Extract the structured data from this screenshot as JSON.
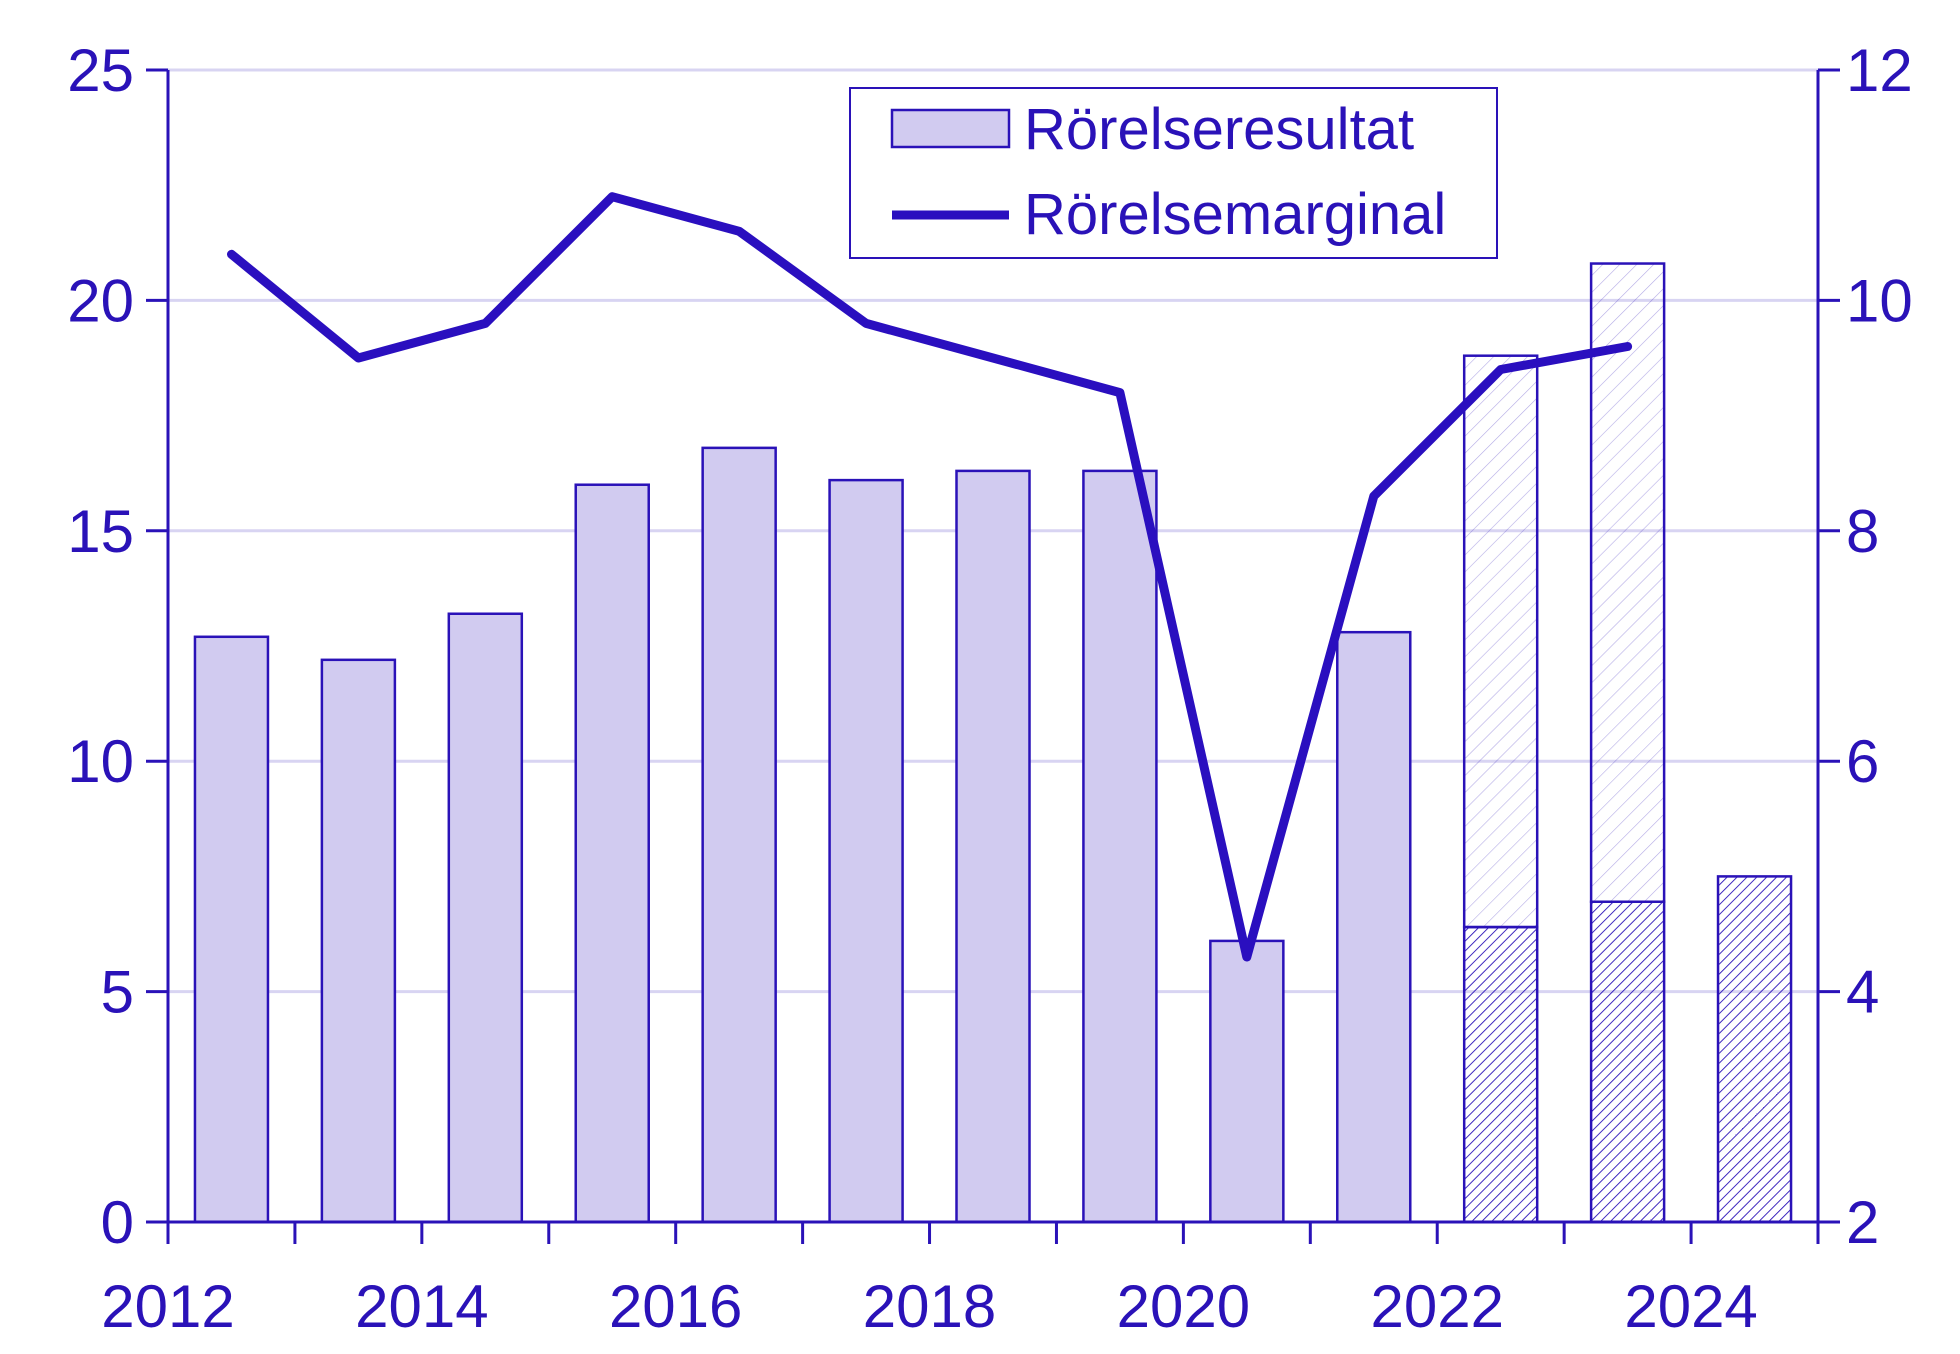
{
  "colors": {
    "axis": "#2a12b8",
    "bar_fill": "#d1cbf0",
    "bar_stroke": "#2a12b8",
    "grid": "#d8d4f2",
    "line": "#2a0fbf",
    "hatch": "#2a12b8"
  },
  "legend": {
    "bars_label": "Rörelseresultat",
    "line_label": "Rörelsemarginal",
    "placement": "top-center"
  },
  "chart_data": {
    "type": "bar",
    "categories": [
      "2012",
      "2013",
      "2014",
      "2015",
      "2016",
      "2017",
      "2018",
      "2019",
      "2020",
      "2021",
      "2022",
      "2023",
      "2024"
    ],
    "x_tick_labels": [
      "2012",
      "2014",
      "2016",
      "2018",
      "2020",
      "2022",
      "2024"
    ],
    "left_ticks": [
      "0",
      "5",
      "10",
      "15",
      "20",
      "25"
    ],
    "right_ticks": [
      "2",
      "4",
      "6",
      "8",
      "10",
      "12"
    ],
    "ylim_left": [
      0,
      25
    ],
    "ylim_right": [
      2,
      12
    ],
    "grid": true,
    "series": [
      {
        "name": "Rörelseresultat",
        "type": "bar",
        "axis": "left",
        "values": [
          12.7,
          12.2,
          13.2,
          16.0,
          16.8,
          16.1,
          16.3,
          16.3,
          6.1,
          12.8,
          18.8,
          20.8,
          7.5
        ],
        "dense_hatched_portion": [
          null,
          null,
          null,
          null,
          null,
          null,
          null,
          null,
          null,
          null,
          6.4,
          6.95,
          7.5
        ]
      },
      {
        "name": "Rörelsemarginal",
        "type": "line",
        "axis": "right",
        "values": [
          10.4,
          9.5,
          9.8,
          10.9,
          10.6,
          9.8,
          9.5,
          9.2,
          4.3,
          8.3,
          9.4,
          9.6,
          null
        ]
      }
    ]
  }
}
